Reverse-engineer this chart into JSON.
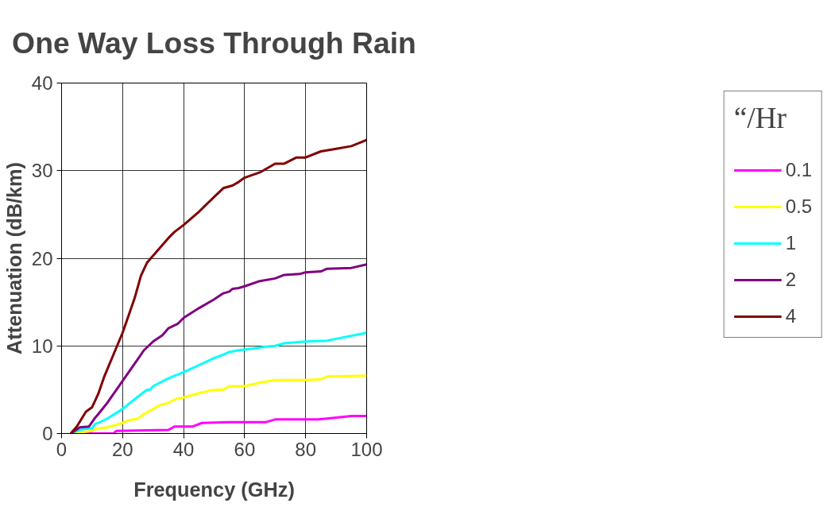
{
  "chart_data": {
    "type": "line",
    "title": "One Way Loss Through Rain",
    "xlabel": "Frequency (GHz)",
    "ylabel": "Attenuation (dB/km)",
    "legend_title": "“/Hr",
    "xlim": [
      0,
      100
    ],
    "ylim": [
      0,
      40
    ],
    "xticks": [
      0,
      20,
      40,
      60,
      80,
      100
    ],
    "yticks": [
      0,
      10,
      20,
      30,
      40
    ],
    "grid": true,
    "legend": "right",
    "line_style": "solid",
    "series": [
      {
        "name": "0.1",
        "color": "#ff00ff",
        "x": [
          3,
          17,
          18,
          35,
          37,
          43,
          46,
          55,
          67,
          70,
          84,
          87,
          95,
          100
        ],
        "values": [
          0,
          0,
          0.3,
          0.4,
          0.8,
          0.8,
          1.2,
          1.3,
          1.3,
          1.6,
          1.6,
          1.7,
          2,
          2
        ]
      },
      {
        "name": "0.5",
        "color": "#ffff00",
        "x": [
          3,
          10,
          12,
          15,
          20,
          22,
          25,
          27,
          30,
          32,
          35,
          38,
          40,
          45,
          50,
          53,
          55,
          60,
          65,
          70,
          80,
          85,
          87,
          100
        ],
        "values": [
          0,
          0.3,
          0.6,
          0.7,
          1.2,
          1.5,
          1.7,
          2.2,
          2.8,
          3.2,
          3.5,
          4,
          4.1,
          4.6,
          5,
          5,
          5.4,
          5.4,
          5.8,
          6.1,
          6.1,
          6.2,
          6.5,
          6.6
        ]
      },
      {
        "name": "1",
        "color": "#00ffff",
        "x": [
          3,
          5,
          7,
          10,
          11,
          12,
          15,
          20,
          25,
          28,
          29,
          30,
          35,
          40,
          45,
          50,
          53,
          55,
          58,
          63,
          67,
          70,
          73,
          80,
          87,
          100
        ],
        "values": [
          0,
          0.3,
          0.5,
          0.6,
          1.1,
          1.2,
          1.7,
          2.8,
          4.2,
          5,
          5,
          5.4,
          6.3,
          7,
          7.8,
          8.6,
          9,
          9.3,
          9.5,
          9.7,
          9.9,
          10,
          10.3,
          10.5,
          10.6,
          11.5
        ]
      },
      {
        "name": "2",
        "color": "#800080",
        "x": [
          3,
          6,
          9,
          10,
          11,
          12,
          15,
          20,
          23,
          25,
          27,
          30,
          33,
          35,
          38,
          40,
          45,
          50,
          53,
          55,
          56,
          58,
          60,
          65,
          70,
          73,
          78,
          80,
          85,
          87,
          95,
          100
        ],
        "values": [
          0,
          0.7,
          0.8,
          1.3,
          1.8,
          2.2,
          3.5,
          6,
          7.5,
          8.5,
          9.5,
          10.5,
          11.2,
          12,
          12.5,
          13.2,
          14.3,
          15.3,
          16,
          16.2,
          16.5,
          16.6,
          16.8,
          17.4,
          17.7,
          18.1,
          18.2,
          18.4,
          18.5,
          18.8,
          18.9,
          19.3
        ]
      },
      {
        "name": "4",
        "color": "#800000",
        "x": [
          3,
          5,
          8,
          10,
          12,
          14,
          17,
          20,
          22,
          24,
          26,
          28,
          30,
          33,
          35,
          37,
          40,
          45,
          50,
          53,
          56,
          58,
          60,
          65,
          70,
          73,
          77,
          80,
          85,
          90,
          95,
          100
        ],
        "values": [
          0,
          0.8,
          2.5,
          3,
          4.5,
          6.5,
          9,
          11.5,
          13.5,
          15.5,
          18,
          19.5,
          20.3,
          21.5,
          22.3,
          23,
          23.8,
          25.3,
          27,
          28,
          28.3,
          28.7,
          29.2,
          29.8,
          30.8,
          30.8,
          31.5,
          31.5,
          32.2,
          32.5,
          32.8,
          33.5
        ]
      }
    ]
  }
}
